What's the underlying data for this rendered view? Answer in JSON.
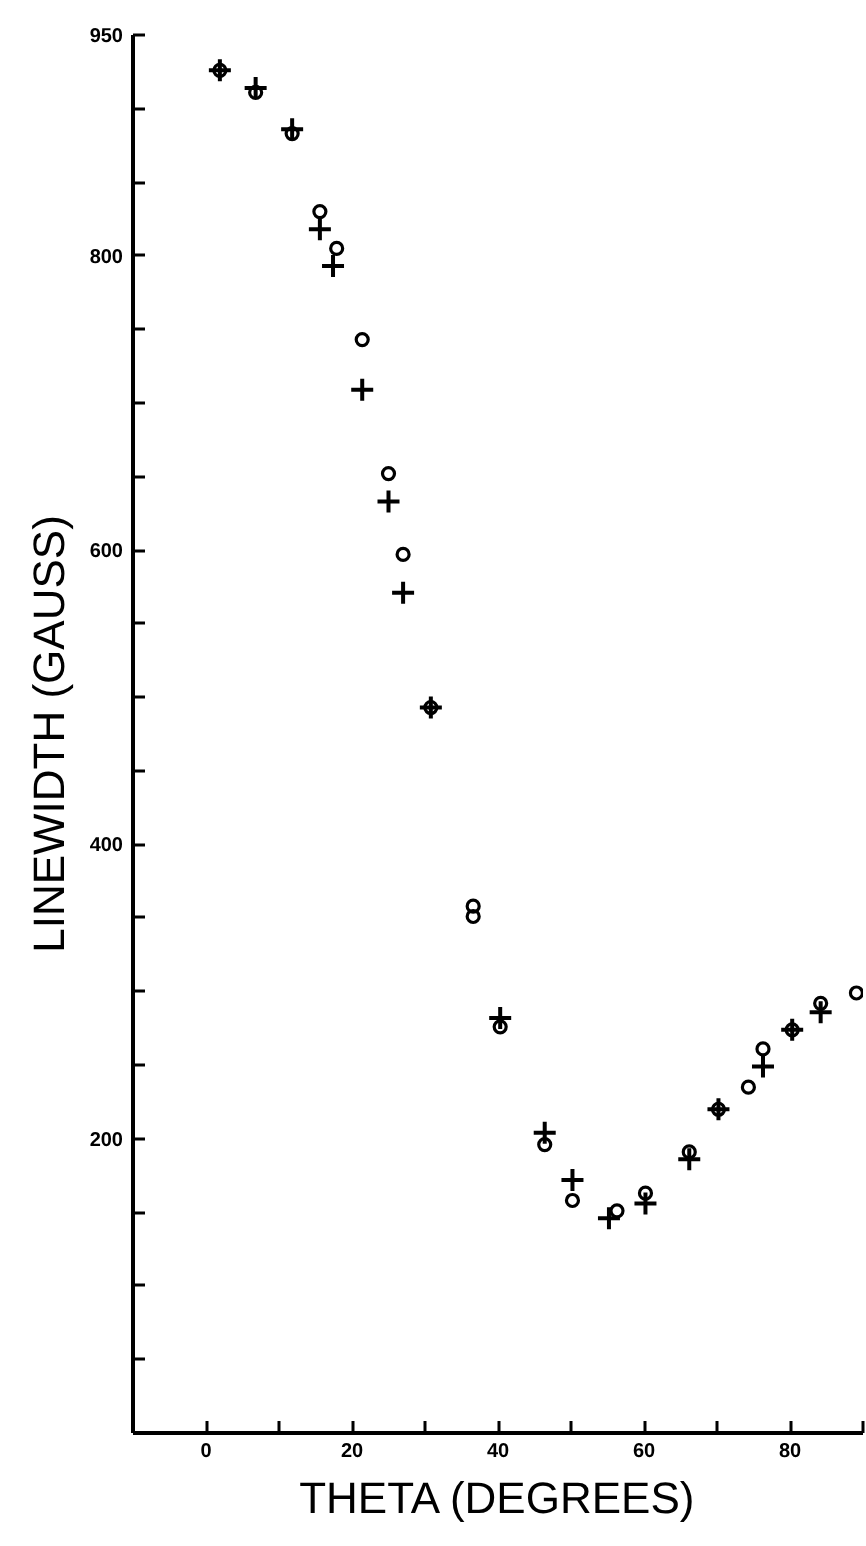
{
  "chart_data": {
    "type": "scatter",
    "xlabel": "THETA (DEGREES)",
    "ylabel": "LINEWIDTH (GAUSS)",
    "xlim": [
      -10,
      90
    ],
    "ylim": [
      0,
      950
    ],
    "xticks": [
      0,
      {
        "value": 10,
        "label": null
      },
      20,
      {
        "value": 30,
        "label": null
      },
      40,
      {
        "value": 50,
        "label": null
      },
      60,
      {
        "value": 70,
        "label": null
      },
      80,
      {
        "value": 90,
        "label": null
      }
    ],
    "yticks": [
      {
        "value": 50,
        "label": null
      },
      {
        "value": 100,
        "label": null
      },
      {
        "value": 150,
        "label": null
      },
      200,
      {
        "value": 250,
        "label": null
      },
      {
        "value": 300,
        "label": null
      },
      {
        "value": 350,
        "label": null
      },
      400,
      {
        "value": 450,
        "label": null
      },
      {
        "value": 500,
        "label": null
      },
      {
        "value": 550,
        "label": null
      },
      600,
      {
        "value": 650,
        "label": null
      },
      {
        "value": 700,
        "label": null
      },
      {
        "value": 750,
        "label": null
      },
      800,
      {
        "value": 850,
        "label": null
      },
      {
        "value": 900,
        "label": null
      },
      950
    ],
    "grid": false,
    "series": [
      {
        "color": "#000000",
        "marker": "circle",
        "x": [
          1.9,
          6.8,
          11.8,
          15.6,
          17.9,
          21.4,
          25,
          27,
          30.8,
          36.6,
          36.6,
          40.3,
          46.4,
          50.2,
          56.3,
          60.2,
          66.2,
          70.2,
          74.3,
          76.3,
          80.3,
          84.2,
          89.1
        ],
        "values": [
          926,
          911,
          883,
          830,
          805,
          743,
          652,
          597,
          493,
          358,
          351,
          276,
          196,
          158,
          151,
          163,
          191,
          220,
          235,
          261,
          274,
          292,
          299
        ]
      },
      {
        "color": "#000000",
        "marker": "cross",
        "x": [
          1.9,
          6.8,
          11.8,
          15.6,
          17.4,
          21.4,
          25,
          27,
          30.8,
          40.3,
          46.4,
          50.2,
          55.2,
          60.2,
          66.2,
          70.2,
          76.3,
          80.3,
          84.2
        ],
        "values": [
          926,
          914,
          886,
          818,
          793,
          709,
          633,
          571,
          493,
          282,
          204,
          172,
          146,
          156,
          186,
          220,
          249,
          274,
          286
        ]
      }
    ]
  }
}
